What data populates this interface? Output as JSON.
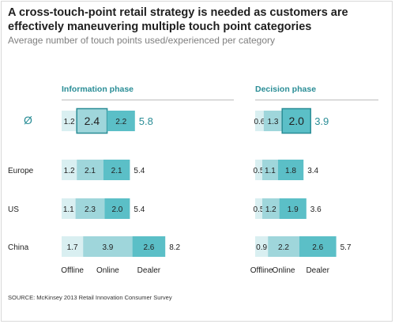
{
  "header": {
    "title": "A cross-touch-point retail strategy is needed as customers are effectively maneuvering multiple touch point categories",
    "subtitle": "Average number of touch points used/experienced per category"
  },
  "footer": {
    "source": "SOURCE: McKinsey 2013 Retail Innovation Consumer Survey"
  },
  "colors": {
    "offline": "#d9eff1",
    "online": "#9fd6db",
    "dealer": "#5bbfc7",
    "accent_text": "#2a8d96",
    "highlight_border": "#2a8d96"
  },
  "chart_data": {
    "type": "bar",
    "orientation": "horizontal",
    "stacked": true,
    "rows": [
      "Ø",
      "Europe",
      "US",
      "China"
    ],
    "series_names": [
      "Offline",
      "Online",
      "Dealer"
    ],
    "panels": [
      {
        "title": "Information phase",
        "highlight": "Online",
        "data": [
          {
            "row": "Ø",
            "values": [
              1.2,
              2.4,
              2.2
            ],
            "total": "5.8"
          },
          {
            "row": "Europe",
            "values": [
              1.2,
              2.1,
              2.1
            ],
            "total": "5.4"
          },
          {
            "row": "US",
            "values": [
              1.1,
              2.3,
              2.0
            ],
            "total": "5.4"
          },
          {
            "row": "China",
            "values": [
              1.7,
              3.9,
              2.6
            ],
            "total": "8.2"
          }
        ]
      },
      {
        "title": "Decision phase",
        "highlight": "Dealer",
        "data": [
          {
            "row": "Ø",
            "values": [
              0.6,
              1.3,
              2.0
            ],
            "total": "3.9"
          },
          {
            "row": "Europe",
            "values": [
              0.5,
              1.1,
              1.8
            ],
            "total": "3.4"
          },
          {
            "row": "US",
            "values": [
              0.5,
              1.2,
              1.9
            ],
            "total": "3.6"
          },
          {
            "row": "China",
            "values": [
              0.9,
              2.2,
              2.6
            ],
            "total": "5.7"
          }
        ]
      }
    ]
  }
}
